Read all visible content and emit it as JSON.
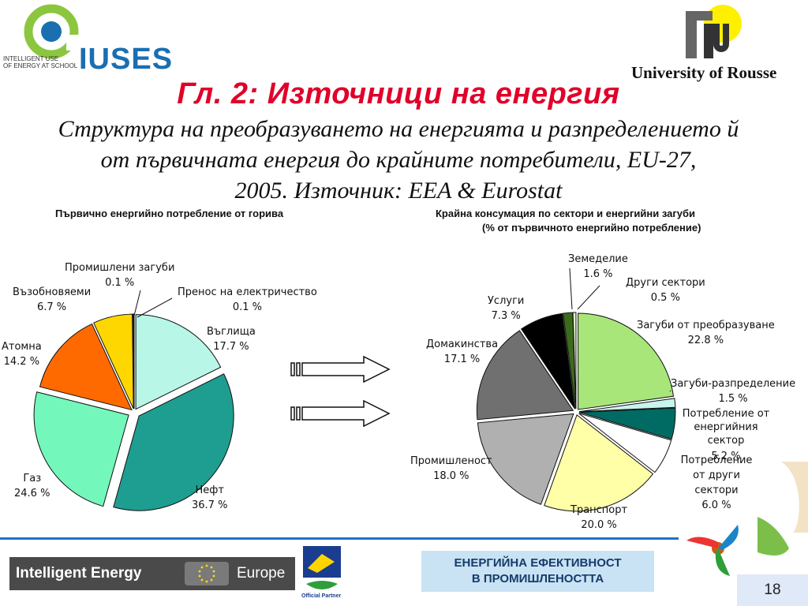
{
  "header": {
    "logo_text": "IUSES",
    "logo_tagline_1": "INTELLIGENT USE",
    "logo_tagline_2": "OF ENERGY AT SCHOOL",
    "university": "University of Rousse"
  },
  "slide": {
    "title": "Гл. 2: Източници на енергия",
    "subtitle_lines": [
      "Структура на преобразуването на енергията и разпределението й",
      "от първичната енергия до крайните потребители, EU-27,",
      "2005. Източник: EEA & Eurostat"
    ]
  },
  "chart_data": [
    {
      "type": "pie",
      "title": "Първично енергийно потребление от горива",
      "unit": "%",
      "slices": [
        {
          "name": "Въглища",
          "value": 17.7,
          "label": "17.7 %",
          "color": "#b8f7e8"
        },
        {
          "name": "Нефт",
          "value": 36.7,
          "label": "36.7 %",
          "color": "#1e9e90"
        },
        {
          "name": "Газ",
          "value": 24.6,
          "label": "24.6 %",
          "color": "#74f7bb"
        },
        {
          "name": "Атомна",
          "value": 14.2,
          "label": "14.2 %",
          "color": "#ff6a00"
        },
        {
          "name": "Възобновяеми",
          "value": 6.7,
          "label": "6.7 %",
          "color": "#ffd700"
        },
        {
          "name": "Промишлени загуби",
          "value": 0.1,
          "label": "0.1 %",
          "color": "#333333"
        },
        {
          "name": "Пренос на електричество",
          "value": 0.1,
          "label": "0.1 %",
          "color": "#999999"
        }
      ]
    },
    {
      "type": "pie",
      "title": "Крайна консумация по сектори и енергийни загуби",
      "subtitle": "(% от първичното енергийно потребление)",
      "unit": "%",
      "slices": [
        {
          "name": "Загуби от преобразуване",
          "value": 22.8,
          "label": "22.8 %",
          "color": "#a8e67a"
        },
        {
          "name": "Загуби-разпределение",
          "value": 1.5,
          "label": "1.5 %",
          "color": "#c8f4ee"
        },
        {
          "name": "Потребление от енергийния сектор",
          "value": 5.2,
          "label": "5.2 %",
          "color": "#006b63"
        },
        {
          "name": "Потребление от други сектори",
          "value": 6.0,
          "label": "6.0 %",
          "color": "#ffffff"
        },
        {
          "name": "Транспорт",
          "value": 20.0,
          "label": "20.0 %",
          "color": "#ffffa8"
        },
        {
          "name": "Промишленост",
          "value": 18.0,
          "label": "18.0 %",
          "color": "#b0b0b0"
        },
        {
          "name": "Домакинства",
          "value": 17.1,
          "label": "17.1 %",
          "color": "#707070"
        },
        {
          "name": "Услуги",
          "value": 7.3,
          "label": "7.3 %",
          "color": "#000000"
        },
        {
          "name": "Земеделие",
          "value": 1.6,
          "label": "1.6 %",
          "color": "#3d6b1e"
        },
        {
          "name": "Други сектори",
          "value": 0.5,
          "label": "0.5 %",
          "color": "#e8f5d0"
        }
      ]
    }
  ],
  "footer": {
    "ie_left": "Intelligent Energy",
    "ie_right": "Europe",
    "official_partner": "Official Partner",
    "badge_line1": "ЕНЕРГИЙНА ЕФЕКТИВНОСТ",
    "badge_line2": "В ПРОМИШЛЕНОСТТА",
    "page_number": "18"
  }
}
